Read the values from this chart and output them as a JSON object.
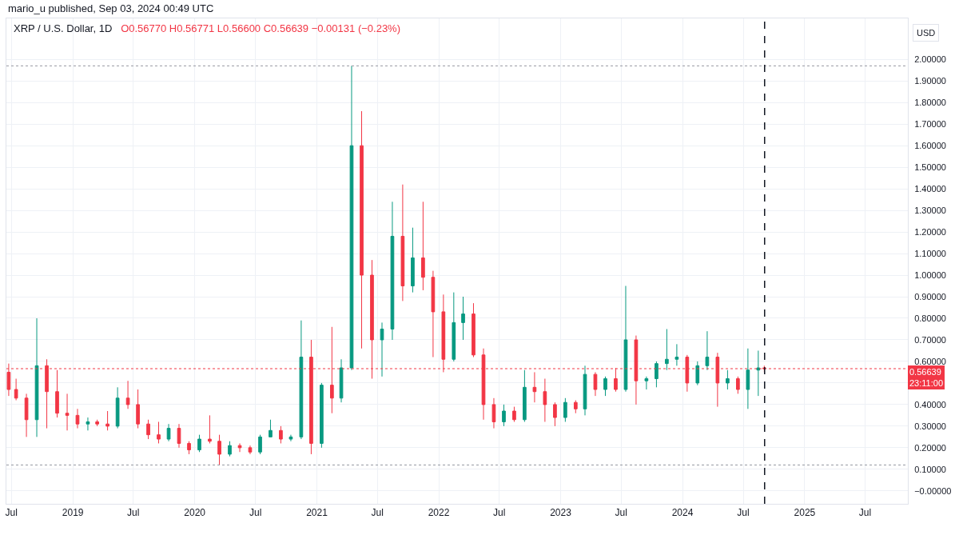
{
  "chart_data": {
    "type": "candlestick",
    "title": "XRP / U.S. Dollar, 1D",
    "subtitle": "O0.56770 H0.56771 L0.56600 C0.56639 −0.00131 (−0.23%)",
    "ylabel": "USD",
    "annotations": [
      "mario_u published, Sep 03, 2024 00:49 UTC"
    ],
    "x": [
      "2018-06-23",
      "2018-07-15",
      "2018-08-15",
      "2018-09-15",
      "2018-10-15",
      "2018-11-15",
      "2018-12-15",
      "2019-01-15",
      "2019-02-15",
      "2019-03-15",
      "2019-04-15",
      "2019-05-15",
      "2019-06-15",
      "2019-07-15",
      "2019-08-15",
      "2019-09-15",
      "2019-10-15",
      "2019-11-15",
      "2019-12-15",
      "2020-01-15",
      "2020-02-15",
      "2020-03-15",
      "2020-04-15",
      "2020-05-15",
      "2020-06-15",
      "2020-07-15",
      "2020-08-15",
      "2020-09-15",
      "2020-10-15",
      "2020-11-15",
      "2020-12-15",
      "2021-01-15",
      "2021-02-15",
      "2021-03-15",
      "2021-04-15",
      "2021-05-15",
      "2021-06-15",
      "2021-07-15",
      "2021-08-15",
      "2021-09-15",
      "2021-10-15",
      "2021-11-15",
      "2021-12-15",
      "2022-01-15",
      "2022-02-15",
      "2022-03-15",
      "2022-04-15",
      "2022-05-15",
      "2022-06-15",
      "2022-07-15",
      "2022-08-15",
      "2022-09-15",
      "2022-10-15",
      "2022-11-15",
      "2022-12-15",
      "2023-01-15",
      "2023-02-15",
      "2023-03-15",
      "2023-04-15",
      "2023-05-15",
      "2023-06-15",
      "2023-07-15",
      "2023-08-15",
      "2023-09-15",
      "2023-10-15",
      "2023-11-15",
      "2023-12-15",
      "2024-01-15",
      "2024-02-15",
      "2024-03-15",
      "2024-04-15",
      "2024-05-15",
      "2024-06-15",
      "2024-07-15",
      "2024-08-15",
      "2024-09-02"
    ],
    "ohlc": [
      [
        0.55,
        0.59,
        0.44,
        0.47
      ],
      [
        0.47,
        0.52,
        0.42,
        0.43
      ],
      [
        0.43,
        0.45,
        0.25,
        0.33
      ],
      [
        0.33,
        0.8,
        0.25,
        0.58
      ],
      [
        0.58,
        0.61,
        0.29,
        0.46
      ],
      [
        0.46,
        0.56,
        0.34,
        0.36
      ],
      [
        0.36,
        0.45,
        0.28,
        0.35
      ],
      [
        0.35,
        0.38,
        0.29,
        0.31
      ],
      [
        0.31,
        0.34,
        0.28,
        0.32
      ],
      [
        0.32,
        0.33,
        0.3,
        0.31
      ],
      [
        0.31,
        0.37,
        0.28,
        0.3
      ],
      [
        0.3,
        0.48,
        0.29,
        0.43
      ],
      [
        0.43,
        0.51,
        0.38,
        0.4
      ],
      [
        0.4,
        0.47,
        0.29,
        0.31
      ],
      [
        0.31,
        0.33,
        0.24,
        0.26
      ],
      [
        0.26,
        0.32,
        0.22,
        0.24
      ],
      [
        0.24,
        0.31,
        0.23,
        0.29
      ],
      [
        0.29,
        0.31,
        0.2,
        0.22
      ],
      [
        0.22,
        0.23,
        0.17,
        0.19
      ],
      [
        0.19,
        0.26,
        0.18,
        0.24
      ],
      [
        0.24,
        0.35,
        0.22,
        0.23
      ],
      [
        0.23,
        0.26,
        0.12,
        0.17
      ],
      [
        0.17,
        0.23,
        0.16,
        0.21
      ],
      [
        0.21,
        0.22,
        0.18,
        0.2
      ],
      [
        0.2,
        0.21,
        0.17,
        0.18
      ],
      [
        0.18,
        0.26,
        0.17,
        0.25
      ],
      [
        0.25,
        0.33,
        0.25,
        0.28
      ],
      [
        0.28,
        0.3,
        0.22,
        0.24
      ],
      [
        0.24,
        0.26,
        0.23,
        0.25
      ],
      [
        0.25,
        0.79,
        0.24,
        0.62
      ],
      [
        0.62,
        0.7,
        0.17,
        0.22
      ],
      [
        0.22,
        0.5,
        0.2,
        0.49
      ],
      [
        0.49,
        0.76,
        0.36,
        0.43
      ],
      [
        0.43,
        0.61,
        0.41,
        0.57
      ],
      [
        0.57,
        1.97,
        0.56,
        1.6
      ],
      [
        1.6,
        1.76,
        0.66,
        1.0
      ],
      [
        1.0,
        1.07,
        0.52,
        0.7
      ],
      [
        0.7,
        0.78,
        0.53,
        0.75
      ],
      [
        0.75,
        1.34,
        0.7,
        1.18
      ],
      [
        1.18,
        1.42,
        0.88,
        0.95
      ],
      [
        0.95,
        1.22,
        0.92,
        1.08
      ],
      [
        1.08,
        1.34,
        0.93,
        0.99
      ],
      [
        0.99,
        1.02,
        0.62,
        0.83
      ],
      [
        0.83,
        0.91,
        0.55,
        0.61
      ],
      [
        0.61,
        0.92,
        0.6,
        0.78
      ],
      [
        0.78,
        0.9,
        0.7,
        0.82
      ],
      [
        0.82,
        0.87,
        0.62,
        0.63
      ],
      [
        0.63,
        0.66,
        0.33,
        0.4
      ],
      [
        0.4,
        0.43,
        0.29,
        0.32
      ],
      [
        0.32,
        0.4,
        0.3,
        0.37
      ],
      [
        0.37,
        0.39,
        0.32,
        0.33
      ],
      [
        0.33,
        0.56,
        0.32,
        0.48
      ],
      [
        0.48,
        0.55,
        0.41,
        0.46
      ],
      [
        0.46,
        0.52,
        0.32,
        0.4
      ],
      [
        0.4,
        0.41,
        0.3,
        0.34
      ],
      [
        0.34,
        0.43,
        0.32,
        0.41
      ],
      [
        0.41,
        0.42,
        0.36,
        0.38
      ],
      [
        0.38,
        0.58,
        0.35,
        0.54
      ],
      [
        0.54,
        0.55,
        0.44,
        0.47
      ],
      [
        0.47,
        0.53,
        0.44,
        0.52
      ],
      [
        0.52,
        0.57,
        0.46,
        0.47
      ],
      [
        0.47,
        0.95,
        0.46,
        0.7
      ],
      [
        0.7,
        0.72,
        0.4,
        0.51
      ],
      [
        0.51,
        0.53,
        0.47,
        0.52
      ],
      [
        0.52,
        0.6,
        0.48,
        0.59
      ],
      [
        0.59,
        0.75,
        0.56,
        0.61
      ],
      [
        0.61,
        0.68,
        0.58,
        0.62
      ],
      [
        0.62,
        0.63,
        0.46,
        0.5
      ],
      [
        0.5,
        0.6,
        0.49,
        0.58
      ],
      [
        0.58,
        0.74,
        0.56,
        0.62
      ],
      [
        0.62,
        0.64,
        0.39,
        0.5
      ],
      [
        0.5,
        0.56,
        0.47,
        0.52
      ],
      [
        0.52,
        0.53,
        0.45,
        0.47
      ],
      [
        0.47,
        0.66,
        0.38,
        0.56
      ],
      [
        0.56,
        0.65,
        0.44,
        0.57
      ],
      [
        0.57,
        0.58,
        0.55,
        0.56639
      ]
    ],
    "colors": [
      "#f23645",
      "#f23645",
      "#f23645",
      "#089981",
      "#f23645",
      "#f23645",
      "#f23645",
      "#f23645",
      "#089981",
      "#f23645",
      "#f23645",
      "#089981",
      "#f23645",
      "#f23645",
      "#f23645",
      "#f23645",
      "#089981",
      "#f23645",
      "#f23645",
      "#089981",
      "#f23645",
      "#f23645",
      "#089981",
      "#f23645",
      "#f23645",
      "#089981",
      "#089981",
      "#f23645",
      "#089981",
      "#089981",
      "#f23645",
      "#089981",
      "#f23645",
      "#089981",
      "#089981",
      "#f23645",
      "#f23645",
      "#089981",
      "#089981",
      "#f23645",
      "#089981",
      "#f23645",
      "#f23645",
      "#f23645",
      "#089981",
      "#089981",
      "#f23645",
      "#f23645",
      "#f23645",
      "#089981",
      "#f23645",
      "#089981",
      "#f23645",
      "#f23645",
      "#f23645",
      "#089981",
      "#f23645",
      "#089981",
      "#f23645",
      "#089981",
      "#f23645",
      "#089981",
      "#f23645",
      "#089981",
      "#089981",
      "#089981",
      "#089981",
      "#f23645",
      "#089981",
      "#089981",
      "#f23645",
      "#089981",
      "#f23645",
      "#089981",
      "#089981",
      "#f23645"
    ],
    "xlim": [
      "2018-06-16",
      "2025-11-06"
    ],
    "xticks": [
      {
        "value": "2018-07-01",
        "label": "Jul"
      },
      {
        "value": "2019-01-01",
        "label": "2019"
      },
      {
        "value": "2019-07-01",
        "label": "Jul"
      },
      {
        "value": "2020-01-01",
        "label": "2020"
      },
      {
        "value": "2020-07-01",
        "label": "Jul"
      },
      {
        "value": "2021-01-01",
        "label": "2021"
      },
      {
        "value": "2021-07-01",
        "label": "Jul"
      },
      {
        "value": "2022-01-01",
        "label": "2022"
      },
      {
        "value": "2022-07-01",
        "label": "Jul"
      },
      {
        "value": "2023-01-01",
        "label": "2023"
      },
      {
        "value": "2023-07-01",
        "label": "Jul"
      },
      {
        "value": "2024-01-01",
        "label": "2024"
      },
      {
        "value": "2024-07-01",
        "label": "Jul"
      },
      {
        "value": "2025-01-01",
        "label": "2025"
      },
      {
        "value": "2025-07-01",
        "label": "Jul"
      }
    ],
    "ylim": [
      -0.06,
      2.19
    ],
    "yticks": [
      {
        "value": 0,
        "label": "−0.00000"
      },
      {
        "value": 0.1,
        "label": "0.10000"
      },
      {
        "value": 0.2,
        "label": "0.20000"
      },
      {
        "value": 0.3,
        "label": "0.30000"
      },
      {
        "value": 0.4,
        "label": "0.40000"
      },
      {
        "value": 0.5,
        "label": null
      },
      {
        "value": 0.6,
        "label": "0.60000"
      },
      {
        "value": 0.7,
        "label": "0.70000"
      },
      {
        "value": 0.8,
        "label": "0.80000"
      },
      {
        "value": 0.9,
        "label": "0.90000"
      },
      {
        "value": 1.0,
        "label": "1.00000"
      },
      {
        "value": 1.1,
        "label": "1.10000"
      },
      {
        "value": 1.2,
        "label": "1.20000"
      },
      {
        "value": 1.3,
        "label": "1.30000"
      },
      {
        "value": 1.4,
        "label": "1.40000"
      },
      {
        "value": 1.5,
        "label": "1.50000"
      },
      {
        "value": 1.6,
        "label": "1.60000"
      },
      {
        "value": 1.7,
        "label": "1.70000"
      },
      {
        "value": 1.8,
        "label": "1.80000"
      },
      {
        "value": 1.9,
        "label": "1.90000"
      },
      {
        "value": 2.0,
        "label": "2.00000"
      }
    ],
    "ref_lines": [
      {
        "axis": "y",
        "value": 1.97,
        "color": "#9598a1",
        "line_style": "dotted"
      },
      {
        "axis": "y",
        "value": 0.12,
        "color": "#9598a1",
        "line_style": "dotted"
      },
      {
        "axis": "y",
        "value": 0.56639,
        "label": "0.56639\n23:11:00",
        "color": "#f23645",
        "line_style": "dotted"
      },
      {
        "axis": "x",
        "value": "2024-09-03",
        "color": "#131722",
        "line_style": "dashed"
      }
    ],
    "grid": true
  }
}
